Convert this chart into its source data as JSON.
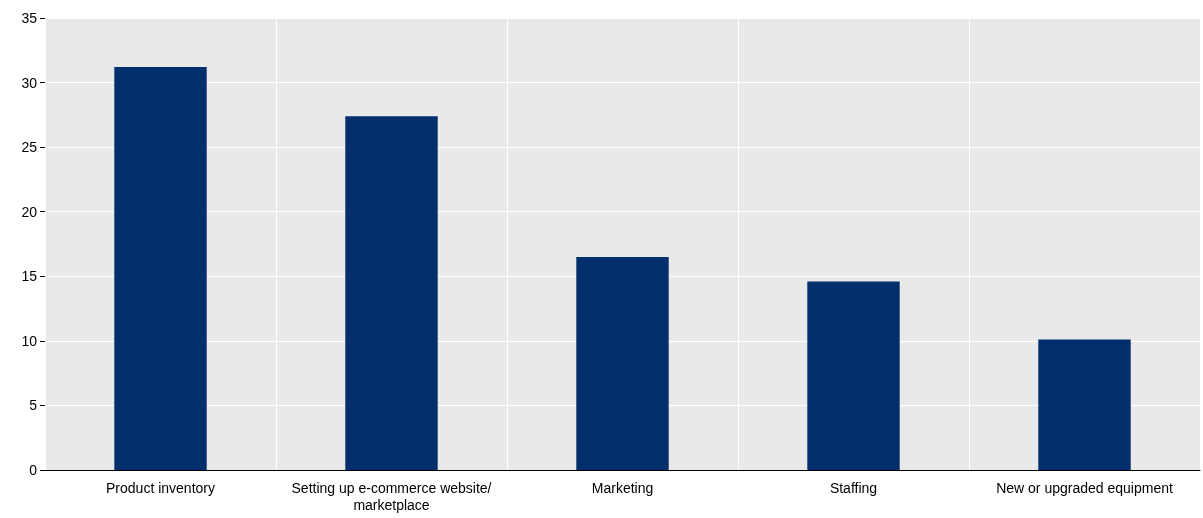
{
  "chart_data": {
    "type": "bar",
    "categories": [
      "Product inventory",
      "Setting up e-commerce website/marketplace",
      "Marketing",
      "Staffing",
      "New or upgraded equipment"
    ],
    "values": [
      31.2,
      27.4,
      16.5,
      14.6,
      10.1
    ],
    "color": "#002f6c",
    "ylim": [
      0,
      35
    ],
    "yticks": [
      0,
      5,
      10,
      15,
      20,
      25,
      30,
      35
    ],
    "grid": true
  }
}
